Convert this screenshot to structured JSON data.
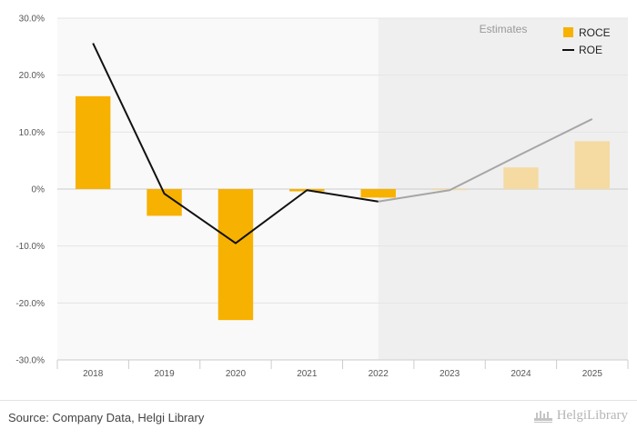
{
  "chart_data": {
    "type": "bar",
    "categories": [
      "2018",
      "2019",
      "2020",
      "2021",
      "2022",
      "2023",
      "2024",
      "2025"
    ],
    "series": [
      {
        "name": "ROCE",
        "kind": "bar",
        "color": "#f7b100",
        "estimate_color": "#f5dba2",
        "values": [
          16.3,
          -4.7,
          -23.0,
          -0.4,
          -1.5,
          -0.2,
          3.8,
          8.4
        ]
      },
      {
        "name": "ROE",
        "kind": "line",
        "color": "#111111",
        "estimate_color": "#a6a6a6",
        "values": [
          25.6,
          -0.8,
          -9.5,
          -0.2,
          -2.2,
          -0.2,
          6.1,
          12.3
        ]
      }
    ],
    "ylim": [
      -30,
      30
    ],
    "yticks": [
      30,
      20,
      10,
      0,
      -10,
      -20,
      -30
    ],
    "ytick_labels": [
      "30.0%",
      "20.0%",
      "10.0%",
      "0%",
      "-10.0%",
      "-20.0%",
      "-30.0%"
    ],
    "estimate_start_index": 5,
    "estimates_label": "Estimates",
    "legend_position": "top-right",
    "grid": true
  },
  "footer": {
    "source": "Source: Company Data, Helgi Library",
    "logo": "HelgiLibrary"
  }
}
